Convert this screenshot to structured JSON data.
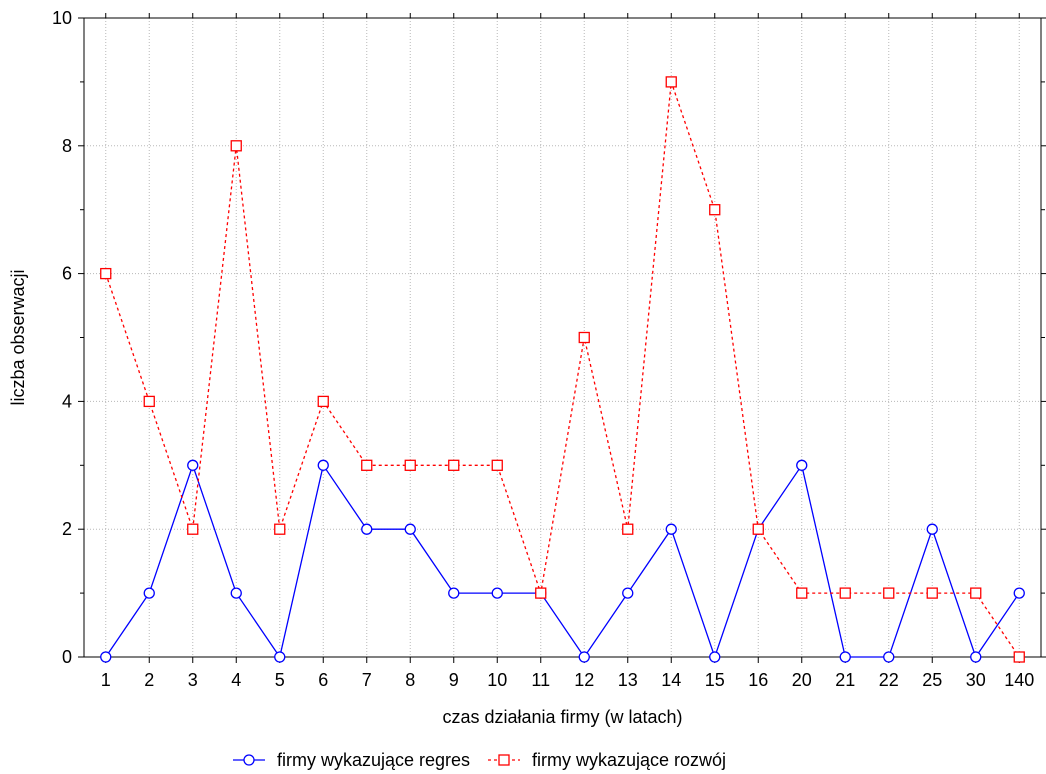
{
  "chart_data": {
    "type": "line",
    "title": "",
    "xlabel": "czas działania firmy (w latach)",
    "ylabel": "liczba obserwacji",
    "categories": [
      "1",
      "2",
      "3",
      "4",
      "5",
      "6",
      "7",
      "8",
      "9",
      "10",
      "11",
      "12",
      "13",
      "14",
      "15",
      "16",
      "20",
      "21",
      "22",
      "25",
      "30",
      "140"
    ],
    "ylim": [
      0,
      10
    ],
    "yticks": [
      0,
      2,
      4,
      6,
      8,
      10
    ],
    "grid": true,
    "legend_position": "bottom",
    "series": [
      {
        "name": "firmy wykazujące regres",
        "color": "#0000ff",
        "line_style": "solid",
        "marker": "circle",
        "values": [
          0,
          1,
          3,
          1,
          0,
          3,
          2,
          2,
          1,
          1,
          1,
          0,
          1,
          2,
          0,
          2,
          3,
          0,
          0,
          2,
          0,
          1
        ]
      },
      {
        "name": "firmy wykazujące rozwój",
        "color": "#ff0000",
        "line_style": "dotted",
        "marker": "square",
        "values": [
          6,
          4,
          2,
          8,
          2,
          4,
          3,
          3,
          3,
          3,
          1,
          5,
          2,
          9,
          7,
          2,
          1,
          1,
          1,
          1,
          1,
          0
        ]
      }
    ]
  }
}
